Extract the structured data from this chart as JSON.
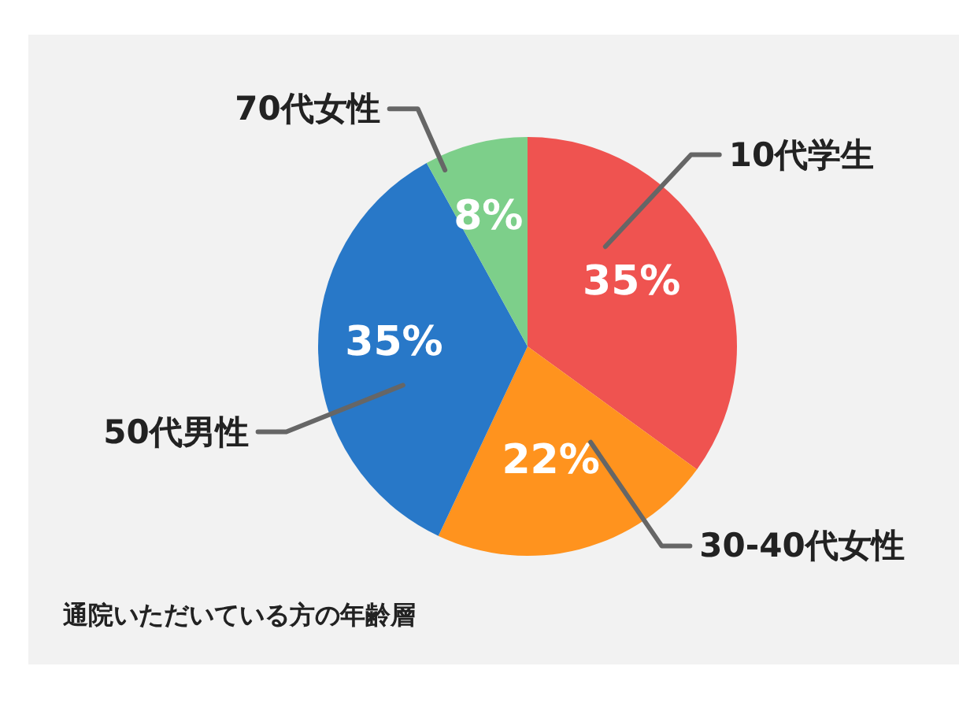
{
  "chart_data": {
    "type": "pie",
    "categories": [
      "10代学生",
      "30-40代女性",
      "50代男性",
      "70代女性"
    ],
    "values": [
      35,
      22,
      35,
      8
    ],
    "colors": [
      "#ef5350",
      "#ff931e",
      "#2878c8",
      "#7dcf8a"
    ],
    "value_labels": [
      "35%",
      "22%",
      "35%",
      "8%"
    ],
    "annotations": [
      "通院いただいている方の年齢層"
    ]
  }
}
